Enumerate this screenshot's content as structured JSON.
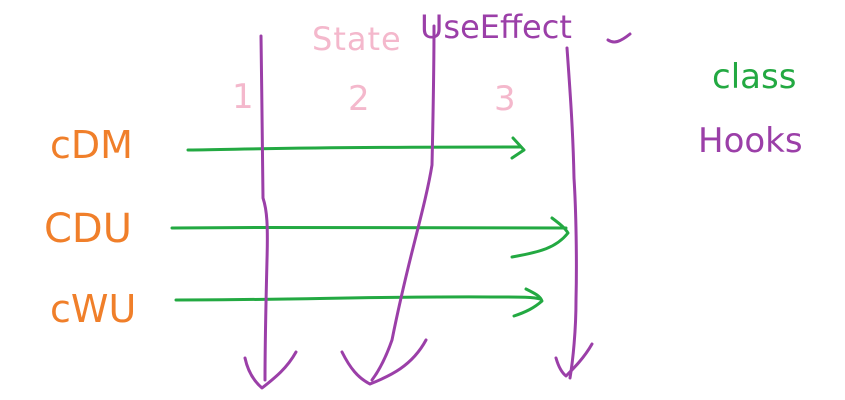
{
  "colors": {
    "pink": "#f4b8cc",
    "purple": "#9b3fa8",
    "orange": "#f07f2a",
    "green": "#23a942"
  },
  "columns": {
    "state_label": "State",
    "use_effect_label": "UseEffect",
    "numbers": [
      "1",
      "2",
      "3"
    ]
  },
  "rows": {
    "labels": [
      "cDM",
      "CDU",
      "cWU"
    ]
  },
  "legend": {
    "class_label": "class",
    "hooks_label": "Hooks"
  }
}
